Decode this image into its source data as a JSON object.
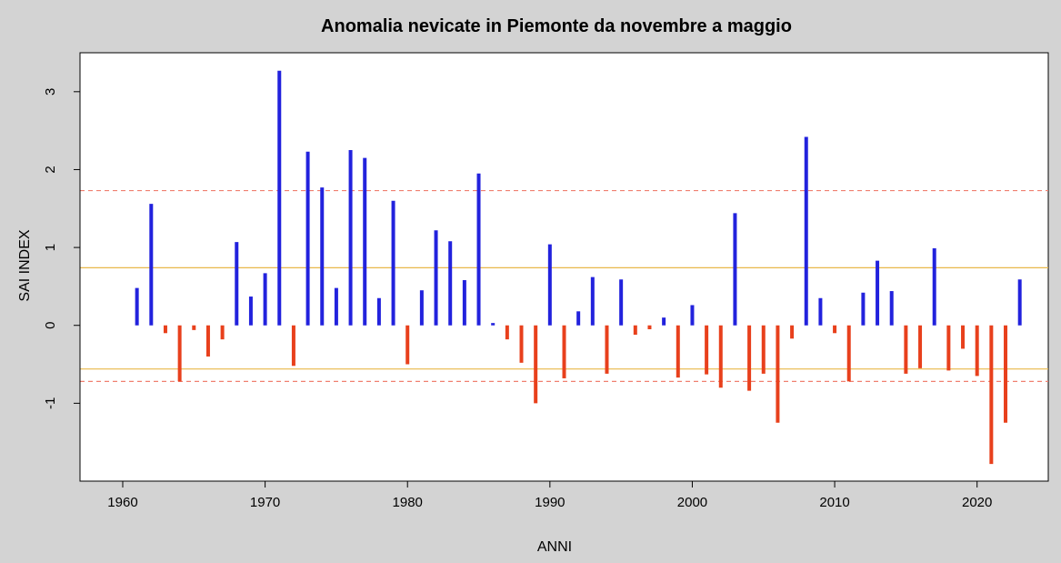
{
  "chart_data": {
    "type": "bar",
    "title": "Anomalia nevicate in Piemonte da novembre a maggio",
    "xlabel": "ANNI",
    "ylabel": "SAI INDEX",
    "xlim": [
      1957,
      2025
    ],
    "ylim": [
      -2.0,
      3.5
    ],
    "xticks": [
      1960,
      1970,
      1980,
      1990,
      2000,
      2010,
      2020
    ],
    "yticks": [
      -1,
      0,
      1,
      2,
      3
    ],
    "grid": false,
    "x": [
      1961,
      1962,
      1963,
      1964,
      1965,
      1966,
      1967,
      1968,
      1969,
      1970,
      1971,
      1972,
      1973,
      1974,
      1975,
      1976,
      1977,
      1978,
      1979,
      1980,
      1981,
      1982,
      1983,
      1984,
      1985,
      1986,
      1987,
      1988,
      1989,
      1990,
      1991,
      1992,
      1993,
      1994,
      1995,
      1996,
      1997,
      1998,
      1999,
      2000,
      2001,
      2002,
      2003,
      2004,
      2005,
      2006,
      2007,
      2008,
      2009,
      2010,
      2011,
      2012,
      2013,
      2014,
      2015,
      2016,
      2017,
      2018,
      2019,
      2020,
      2021,
      2022,
      2023
    ],
    "values": [
      0.48,
      1.56,
      -0.1,
      -0.72,
      -0.06,
      -0.4,
      -0.18,
      1.07,
      0.37,
      0.67,
      3.27,
      -0.52,
      2.23,
      1.77,
      0.48,
      2.25,
      2.15,
      0.35,
      1.6,
      -0.5,
      0.45,
      1.22,
      1.08,
      0.58,
      1.95,
      0.03,
      -0.18,
      -0.48,
      -1.0,
      1.04,
      -0.68,
      0.18,
      0.62,
      -0.62,
      0.59,
      -0.12,
      -0.05,
      0.1,
      -0.67,
      0.26,
      -0.63,
      -0.8,
      1.44,
      -0.84,
      -0.62,
      -1.25,
      -0.17,
      2.42,
      0.35,
      -0.1,
      -0.72,
      0.42,
      0.83,
      0.44,
      -0.62,
      -0.55,
      0.99,
      -0.58,
      -0.3,
      -0.65,
      -1.78,
      -1.25,
      0.59
    ],
    "reference_lines": [
      {
        "y": 0.74,
        "style": "solid",
        "color": "#e8b84a"
      },
      {
        "y": -0.56,
        "style": "solid",
        "color": "#e8b84a"
      },
      {
        "y": 1.73,
        "style": "dashed",
        "color": "#f08070"
      },
      {
        "y": -0.72,
        "style": "dashed",
        "color": "#f08070"
      }
    ],
    "colors": {
      "positive": "#2222dd",
      "negative": "#e8401c"
    }
  }
}
